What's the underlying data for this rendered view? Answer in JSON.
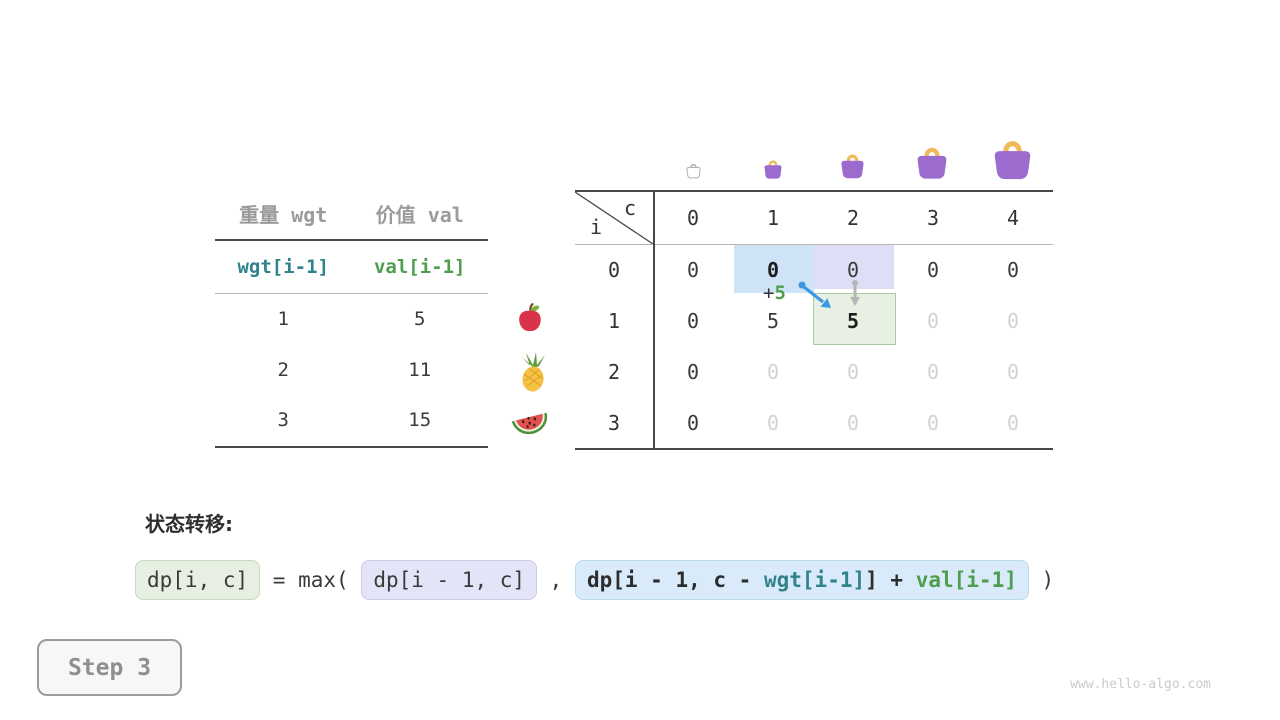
{
  "items_table": {
    "col_headers": [
      "重量 wgt",
      "价值 val"
    ],
    "index_headers": [
      "wgt[i-1]",
      "val[i-1]"
    ],
    "rows": [
      {
        "wgt": "1",
        "val": "5"
      },
      {
        "wgt": "2",
        "val": "11"
      },
      {
        "wgt": "3",
        "val": "15"
      }
    ],
    "row_icons": [
      "apple-icon",
      "pineapple-icon",
      "watermelon-icon"
    ]
  },
  "dp_table": {
    "corner": {
      "top_label": "c",
      "side_label": "i"
    },
    "col_headers": [
      "0",
      "1",
      "2",
      "3",
      "4"
    ],
    "row_headers": [
      "0",
      "1",
      "2",
      "3"
    ],
    "cells": [
      [
        "0",
        "0",
        "0",
        "0",
        "0"
      ],
      [
        "0",
        "5",
        "5",
        "0",
        "0"
      ],
      [
        "0",
        "0",
        "0",
        "0",
        "0"
      ],
      [
        "0",
        "0",
        "0",
        "0",
        "0"
      ]
    ],
    "cell_styles": [
      [
        "normal",
        "bold",
        "normal",
        "normal",
        "normal"
      ],
      [
        "normal",
        "normal",
        "bold",
        "faded",
        "faded"
      ],
      [
        "normal",
        "faded",
        "faded",
        "faded",
        "faded"
      ],
      [
        "normal",
        "faded",
        "faded",
        "faded",
        "faded"
      ]
    ],
    "capacity_icons": [
      "bag-outline-icon",
      "bag-small-icon",
      "bag-medium-icon",
      "bag-large-icon",
      "bag-xlarge-icon"
    ],
    "annotation": {
      "plus": "+",
      "value": "5"
    }
  },
  "formula": {
    "title": "状态转移:",
    "target": "dp[i, c]",
    "equals": " = max( ",
    "option_keep": "dp[i - 1, c]",
    "comma": " , ",
    "option_take_prefix": "dp[i - 1, c - ",
    "option_take_wgt": "wgt[i-1]",
    "option_take_middle": "] + ",
    "option_take_val": "val[i-1]",
    "close": " )"
  },
  "step_badge": {
    "label": "Step 3"
  },
  "watermark": "www.hello-algo.com",
  "colors": {
    "teal": "#31838b",
    "green": "#4f9e4e",
    "faded": "#d2d2d2",
    "highlight_blue": "#cfe3f6",
    "highlight_lavender": "#dedff6",
    "highlight_green_bg": "#e7f0e3",
    "highlight_green_border": "#a9cba1",
    "arrow_blue": "#3e97e3",
    "arrow_gray": "#b5b5b5",
    "bag_purple": "#9b6bcd",
    "bag_handle": "#f0b95a"
  }
}
